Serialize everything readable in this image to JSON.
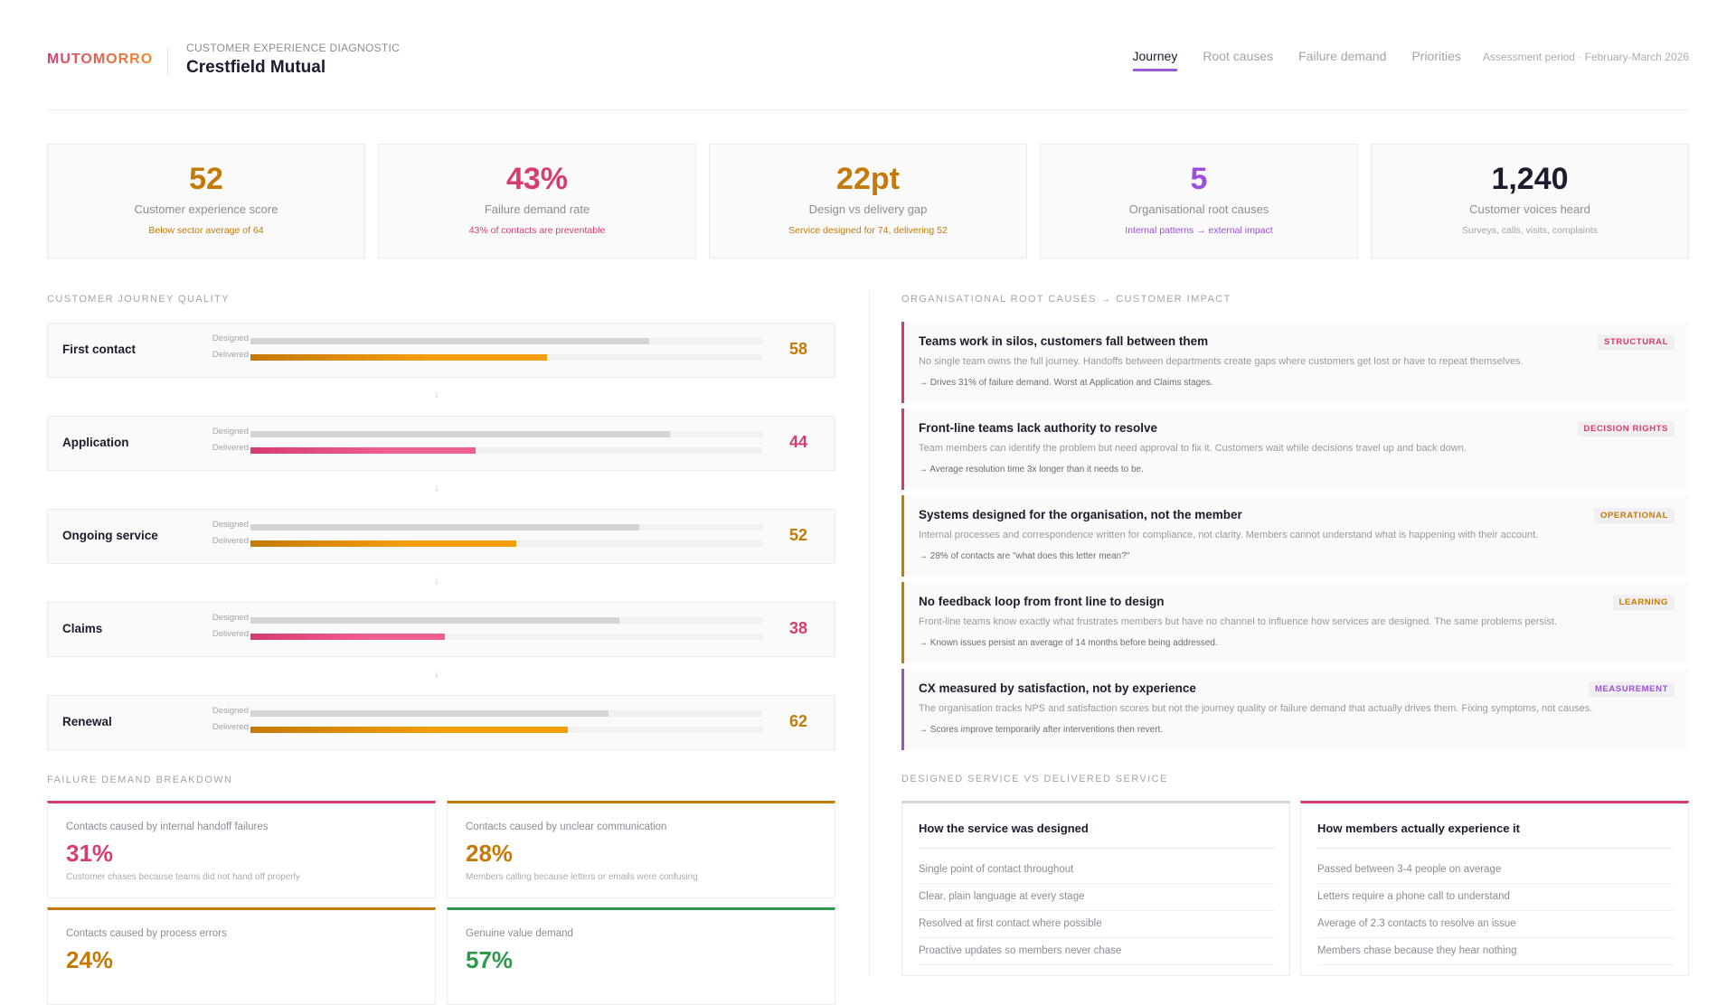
{
  "header": {
    "logo": "MUTOMORRO",
    "subtitle": "CUSTOMER EXPERIENCE DIAGNOSTIC",
    "title": "Crestfield Mutual",
    "tabs": [
      "Journey",
      "Root causes",
      "Failure demand",
      "Priorities"
    ],
    "active_tab": "Journey",
    "period": "Assessment period · February-March 2026"
  },
  "kpis": [
    {
      "value": "52",
      "label": "Customer experience score",
      "note": "Below sector average of 64",
      "color": "#c47a06"
    },
    {
      "value": "43%",
      "label": "Failure demand rate",
      "note": "43% of contacts are preventable",
      "color": "#d63c6d"
    },
    {
      "value": "22pt",
      "label": "Design vs delivery gap",
      "note": "Service designed for 74, delivering 52",
      "color": "#c47a06"
    },
    {
      "value": "5",
      "label": "Organisational root causes",
      "note": "Internal patterns → external impact",
      "color": "#9b4fdc"
    },
    {
      "value": "1,240",
      "label": "Customer voices heard",
      "note": "Surveys, calls, visits, complaints",
      "color": "#1e1b2e",
      "note_color": "#a4a2ac"
    }
  ],
  "journey": {
    "title": "CUSTOMER JOURNEY QUALITY",
    "designed_label": "Designed",
    "delivered_label": "Delivered",
    "arrow": "↓",
    "stages": [
      {
        "name": "First contact",
        "designed": 78,
        "delivered": 58,
        "score": "58",
        "color": "#c47a06",
        "fill": "#f59e0b"
      },
      {
        "name": "Application",
        "designed": 82,
        "delivered": 44,
        "score": "44",
        "color": "#d63c6d",
        "fill": "#ef5f8d"
      },
      {
        "name": "Ongoing service",
        "designed": 76,
        "delivered": 52,
        "score": "52",
        "color": "#c47a06",
        "fill": "#f59e0b"
      },
      {
        "name": "Claims",
        "designed": 72,
        "delivered": 38,
        "score": "38",
        "color": "#d63c6d",
        "fill": "#ef5f8d"
      },
      {
        "name": "Renewal",
        "designed": 70,
        "delivered": 62,
        "score": "62",
        "color": "#c47a06",
        "fill": "#f59e0b"
      }
    ]
  },
  "root_causes": {
    "title": "ORGANISATIONAL ROOT CAUSES → CUSTOMER IMPACT",
    "items": [
      {
        "title": "Teams work in silos, customers fall between them",
        "desc": "No single team owns the full journey. Handoffs between departments create gaps where customers get lost or have to repeat themselves.",
        "impact": "→ Drives 31% of failure demand. Worst at Application and Claims stages.",
        "badge": "STRUCTURAL",
        "color": "#d63c6d"
      },
      {
        "title": "Front-line teams lack authority to resolve",
        "desc": "Team members can identify the problem but need approval to fix it. Customers wait while decisions travel up and back down.",
        "impact": "→ Average resolution time 3x longer than it needs to be.",
        "badge": "DECISION RIGHTS",
        "color": "#d63c6d"
      },
      {
        "title": "Systems designed for the organisation, not the member",
        "desc": "Internal processes and correspondence written for compliance, not clarity. Members cannot understand what is happening with their account.",
        "impact": "→ 28% of contacts are \"what does this letter mean?\"",
        "badge": "OPERATIONAL",
        "color": "#c47a06"
      },
      {
        "title": "No feedback loop from front line to design",
        "desc": "Front-line teams know exactly what frustrates members but have no channel to influence how services are designed. The same problems persist.",
        "impact": "→ Known issues persist an average of 14 months before being addressed.",
        "badge": "LEARNING",
        "color": "#c47a06"
      },
      {
        "title": "CX measured by satisfaction, not by experience",
        "desc": "The organisation tracks NPS and satisfaction scores but not the journey quality or failure demand that actually drives them. Fixing symptoms, not causes.",
        "impact": "→ Scores improve temporarily after interventions then revert.",
        "badge": "MEASUREMENT",
        "color": "#9b4fdc"
      }
    ]
  },
  "failure_demand": {
    "title": "FAILURE DEMAND BREAKDOWN",
    "cards": [
      {
        "label": "Contacts caused by internal handoff failures",
        "value": "31%",
        "note": "Customer chases because teams did not hand off properly",
        "color": "#d63c6d"
      },
      {
        "label": "Contacts caused by unclear communication",
        "value": "28%",
        "note": "Members calling because letters or emails were confusing",
        "color": "#c47a06"
      },
      {
        "label": "Contacts caused by process errors",
        "value": "24%",
        "color": "#c47a06"
      },
      {
        "label": "Genuine value demand",
        "value": "57%",
        "color": "#2e9a4e"
      }
    ]
  },
  "comparison": {
    "title": "DESIGNED SERVICE VS DELIVERED SERVICE",
    "columns": [
      {
        "heading": "How the service was designed",
        "color": "#d6d6da",
        "items": [
          "Single point of contact throughout",
          "Clear, plain language at every stage",
          "Resolved at first contact where possible",
          "Proactive updates so members never chase"
        ]
      },
      {
        "heading": "How members actually experience it",
        "color": "#d63c6d",
        "items": [
          "Passed between 3-4 people on average",
          "Letters require a phone call to understand",
          "Average of 2.3 contacts to resolve an issue",
          "Members chase because they hear nothing"
        ]
      }
    ]
  }
}
